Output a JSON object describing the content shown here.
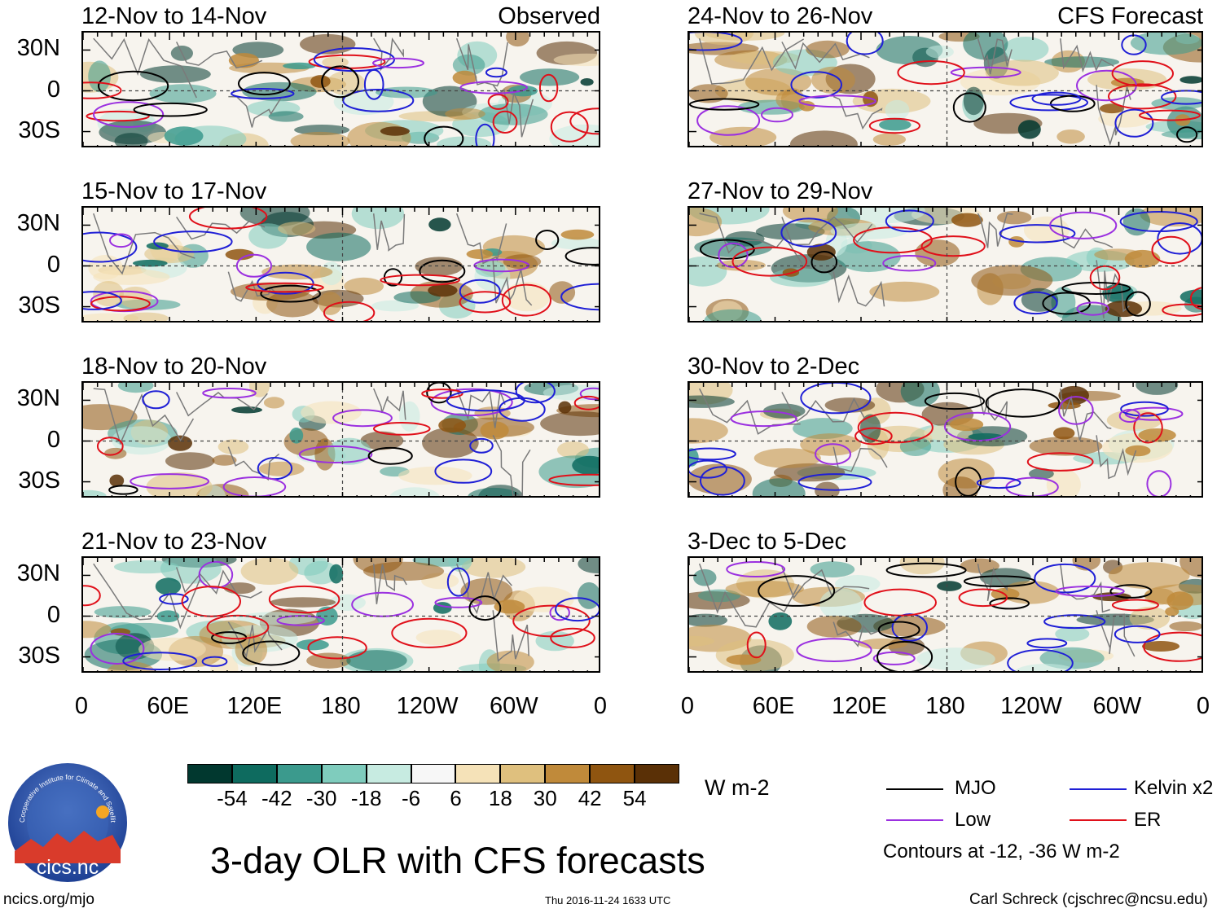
{
  "panels": [
    {
      "title": "12-Nov to 14-Nov",
      "label": "Observed",
      "column": "left"
    },
    {
      "title": "15-Nov to 17-Nov",
      "label": "",
      "column": "left"
    },
    {
      "title": "18-Nov to 20-Nov",
      "label": "",
      "column": "left"
    },
    {
      "title": "21-Nov to 23-Nov",
      "label": "",
      "column": "left"
    },
    {
      "title": "24-Nov to 26-Nov",
      "label": "CFS Forecast",
      "column": "right"
    },
    {
      "title": "27-Nov to 29-Nov",
      "label": "",
      "column": "right"
    },
    {
      "title": "30-Nov to 2-Dec",
      "label": "",
      "column": "right"
    },
    {
      "title": "3-Dec to 5-Dec",
      "label": "",
      "column": "right"
    }
  ],
  "y_ticks": [
    "30N",
    "0",
    "30S"
  ],
  "x_ticks": [
    "0",
    "60E",
    "120E",
    "180",
    "120W",
    "60W",
    "0"
  ],
  "colorbar": {
    "colors": [
      "#01382f",
      "#0e6b5f",
      "#3b9a8d",
      "#7fccbd",
      "#c7ebe1",
      "#f7f7f7",
      "#f5e2b8",
      "#dfc07e",
      "#c08a3a",
      "#8f5510",
      "#5a3006"
    ],
    "labels": [
      "-54",
      "-42",
      "-30",
      "-18",
      "-6",
      "6",
      "18",
      "30",
      "42",
      "54"
    ],
    "unit": "W m-2"
  },
  "legend": {
    "items": [
      {
        "label": "MJO",
        "color": "#000000"
      },
      {
        "label": "Kelvin x2",
        "color": "#1f1fd6"
      },
      {
        "label": "Low",
        "color": "#9b30e0"
      },
      {
        "label": "ER",
        "color": "#e0101a"
      }
    ],
    "note": "Contours at -12, -36 W m-2"
  },
  "main_title": "3-day OLR with CFS forecasts",
  "footer": {
    "left": "ncics.org/mjo",
    "center": "Thu 2016-11-24 1633 UTC",
    "right": "Carl Schreck (cjschrec@ncsu.edu)"
  },
  "logo": {
    "ring_text": "Cooperative Institute for Climate and Satellites",
    "name": "cics.nc"
  }
}
